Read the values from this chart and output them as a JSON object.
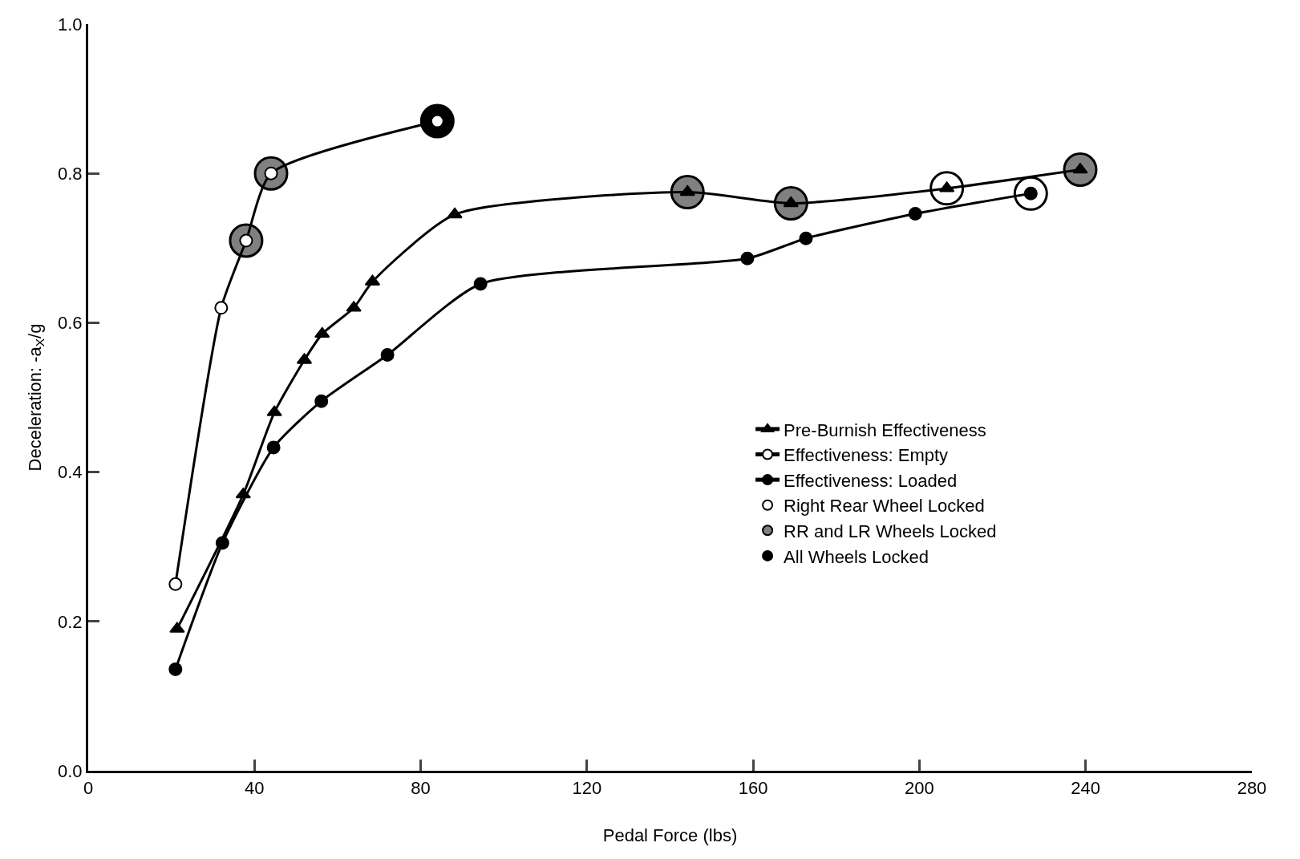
{
  "chart_data": {
    "type": "line",
    "xlabel": "Pedal Force (lbs)",
    "ylabel": "Deceleration: -a$_{X}$/g",
    "xlim": [
      0,
      280
    ],
    "xticks": [
      0,
      40,
      80,
      120,
      160,
      200,
      240,
      280
    ],
    "ylim": [
      0,
      1.0
    ],
    "yticks": [
      {
        "value": 0,
        "label": "0.0"
      },
      0.2,
      0.4,
      0.6,
      0.8,
      {
        "value": 1.0,
        "label": "1.0"
      }
    ],
    "legend": "right",
    "line_style": "solid",
    "series": [
      {
        "name": "Pre-Burnish Effectiveness",
        "marker": "triangle",
        "color": "#000000",
        "x": [
          21.4,
          37.3,
          44.8,
          52,
          56.3,
          63.9,
          68.4,
          88.2,
          144.2,
          169.1,
          206.6,
          238.7
        ],
        "values": [
          0.19,
          0.37,
          0.48,
          0.55,
          0.585,
          0.62,
          0.655,
          0.745,
          0.775,
          0.76,
          0.78,
          0.805
        ]
      },
      {
        "name": "Effectiveness: Empty",
        "marker": "circle",
        "color": "#ffffff",
        "x": [
          21,
          32,
          38,
          44,
          84
        ],
        "values": [
          0.25,
          0.62,
          0.71,
          0.8,
          0.87
        ]
      },
      {
        "name": "Effectiveness: Loaded",
        "marker": "circle",
        "color": "#000000",
        "x": [
          21,
          32.3,
          44.6,
          56.1,
          72,
          94.4,
          158.6,
          172.7,
          199,
          226.8
        ],
        "values": [
          0.136,
          0.305,
          0.433,
          0.495,
          0.557,
          0.652,
          0.686,
          0.713,
          0.746,
          0.773
        ]
      },
      {
        "name": "Right Rear Wheel Locked",
        "type": "scatter",
        "marker": "circle",
        "color": "#ffffff",
        "x": [
          206.6,
          226.8
        ],
        "values": [
          0.78,
          0.773
        ]
      },
      {
        "name": "RR and LR Wheels Locked",
        "type": "scatter",
        "marker": "circle",
        "color": "#808080",
        "x": [
          38,
          44,
          144.2,
          169.1,
          238.7
        ],
        "values": [
          0.71,
          0.8,
          0.775,
          0.76,
          0.805
        ]
      },
      {
        "name": "All Wheels Locked",
        "type": "scatter",
        "marker": "circle",
        "color": "#000000",
        "x": [
          84
        ],
        "values": [
          0.87
        ]
      }
    ]
  }
}
